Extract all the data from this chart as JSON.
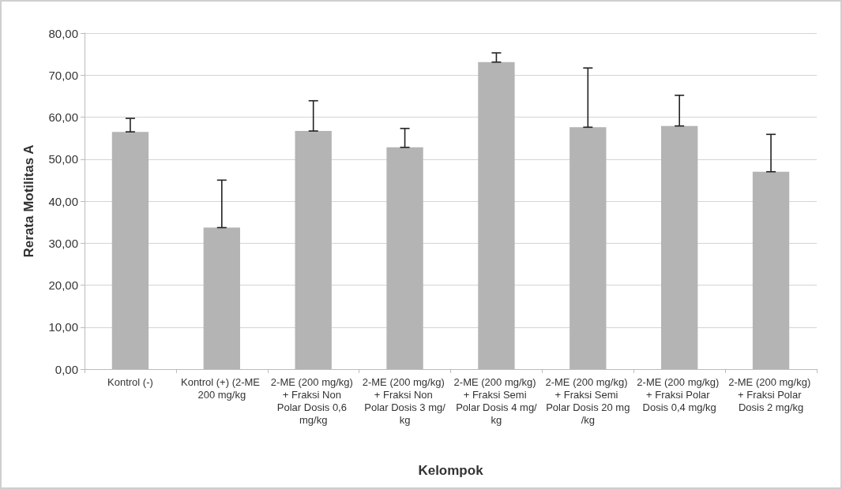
{
  "chart_data": {
    "type": "bar",
    "xlabel": "Kelompok",
    "ylabel": "Rerata Motilitas A",
    "categories": [
      "Kontrol (-)",
      "Kontrol (+) (2-ME 200 mg/kg",
      "2-ME (200 mg/kg) + Fraksi Non Polar Dosis 0,6 mg/kg",
      "2-ME (200 mg/kg) + Fraksi Non Polar Dosis 3 mg/kg",
      "2-ME (200 mg/kg) + Fraksi Semi Polar Dosis 4 mg/kg",
      "2-ME (200 mg/kg) + Fraksi Semi Polar Dosis 20 mg/kg",
      "2-ME (200 mg/kg) + Fraksi Polar Dosis 0,4 mg/kg",
      "2-ME (200 mg/kg) + Fraksi Polar Dosis 2 mg/kg"
    ],
    "values": [
      56.5,
      33.7,
      56.7,
      52.8,
      73.1,
      57.6,
      57.9,
      47.0
    ],
    "errors": [
      [
        56.5,
        59.7
      ],
      [
        33.7,
        45.0
      ],
      [
        56.7,
        63.9
      ],
      [
        52.8,
        57.3
      ],
      [
        73.1,
        75.3
      ],
      [
        57.6,
        71.7
      ],
      [
        57.9,
        65.2
      ],
      [
        47.0,
        55.9
      ]
    ],
    "color": "#b4b4b4",
    "ylim": [
      0,
      80
    ],
    "yticks": [
      {
        "value": 0,
        "label": "0,00"
      },
      {
        "value": 10,
        "label": "10,00"
      },
      {
        "value": 20,
        "label": "20,00"
      },
      {
        "value": 30,
        "label": "30,00"
      },
      {
        "value": 40,
        "label": "40,00"
      },
      {
        "value": 50,
        "label": "50,00"
      },
      {
        "value": 60,
        "label": "60,00"
      },
      {
        "value": 70,
        "label": "70,00"
      },
      {
        "value": 80,
        "label": "80,00"
      }
    ],
    "grid": "y"
  }
}
